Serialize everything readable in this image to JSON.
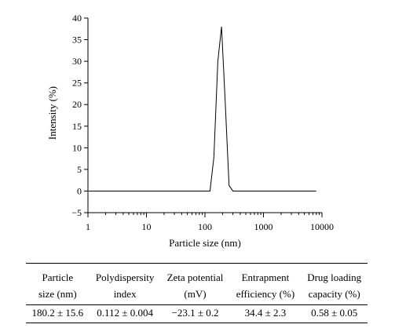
{
  "chart_data": {
    "type": "line",
    "xlabel": "Particle size (nm)",
    "ylabel": "Intensity (%)",
    "xscale": "log",
    "xlim": [
      1,
      10000
    ],
    "ylim": [
      -5,
      40
    ],
    "xtick_labels": [
      "1",
      "10",
      "100",
      "1000",
      "10000"
    ],
    "xtick_values": [
      1,
      10,
      100,
      1000,
      10000
    ],
    "ytick_labels": [
      "−5",
      "0",
      "5",
      "10",
      "15",
      "20",
      "25",
      "30",
      "35",
      "40"
    ],
    "ytick_values": [
      -5,
      0,
      5,
      10,
      15,
      20,
      25,
      30,
      35,
      40
    ],
    "grid": false,
    "series": [
      {
        "x": [
          1,
          122,
          142,
          166,
          192,
          223,
          258,
          300,
          8000
        ],
        "y": [
          0,
          0,
          7.8,
          30,
          38,
          20,
          1.3,
          0,
          0
        ]
      }
    ]
  },
  "table": {
    "headers": [
      [
        "Particle",
        "size (nm)"
      ],
      [
        "Polydispersity",
        "index"
      ],
      [
        "Zeta potential",
        "(mV)"
      ],
      [
        "Entrapment",
        "efficiency (%)"
      ],
      [
        "Drug loading",
        "capacity (%)"
      ]
    ],
    "values": [
      "180.2 ± 15.6",
      "0.112 ± 0.004",
      "−23.1 ± 0.2",
      "34.4 ± 2.3",
      "0.58 ± 0.05"
    ]
  }
}
